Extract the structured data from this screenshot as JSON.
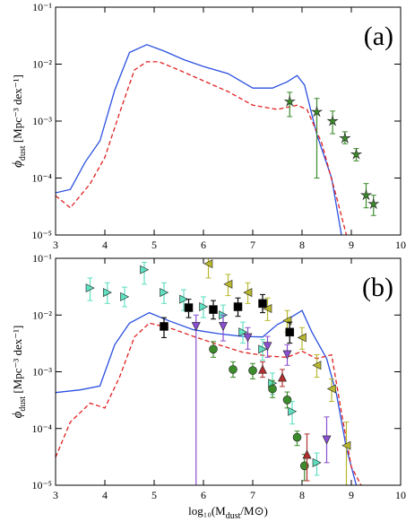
{
  "chart_data": [
    {
      "type": "line",
      "label": "(a)",
      "y_label": {
        "main": "ϕ",
        "sub": "dust",
        "unit": " [Mpc⁻³ dex⁻¹]"
      },
      "xlim": [
        3,
        10
      ],
      "xticks": [
        3,
        4,
        5,
        6,
        7,
        8,
        9,
        10
      ],
      "ylim": [
        1e-05,
        0.1
      ],
      "log_y": true,
      "yticks": [
        {
          "value": 1e-05,
          "label": "10⁻⁵"
        },
        {
          "value": 0.0001,
          "label": "10⁻⁴"
        },
        {
          "value": 0.001,
          "label": "10⁻³"
        },
        {
          "value": 0.01,
          "label": "10⁻²"
        },
        {
          "value": 0.1,
          "label": "10⁻¹"
        }
      ],
      "series": [
        {
          "color": "#2b50e0",
          "style": "solid",
          "x": [
            3,
            3.3,
            3.6,
            3.9,
            4.2,
            4.5,
            4.85,
            5.2,
            5.6,
            6.0,
            6.5,
            7.0,
            7.4,
            7.7,
            7.9,
            8.05,
            8.3,
            8.6,
            8.8,
            8.85
          ],
          "values": [
            5.5e-05,
            6.3e-05,
            0.00019,
            0.00045,
            0.0035,
            0.016,
            0.022,
            0.017,
            0.012,
            0.0091,
            0.0068,
            0.0038,
            0.0038,
            0.0049,
            0.0063,
            0.0043,
            0.00058,
            0.0001,
            1e-05,
            5e-06
          ]
        },
        {
          "color": "#e02020",
          "style": "dashed",
          "x": [
            3,
            3.3,
            3.7,
            4.0,
            4.3,
            4.6,
            4.85,
            5.1,
            5.5,
            6.0,
            6.5,
            7.0,
            7.5,
            7.9,
            8.1,
            8.4,
            8.7,
            8.9,
            9.0
          ],
          "values": [
            4.9e-05,
            3e-05,
            7.9e-05,
            0.00023,
            0.0014,
            0.0079,
            0.011,
            0.011,
            0.0079,
            0.0051,
            0.0033,
            0.0019,
            0.0016,
            0.0019,
            0.0016,
            0.00041,
            4.6e-05,
            1e-05,
            5e-06
          ]
        },
        {
          "color": "#3c8c2c",
          "style": "marker",
          "marker": "star",
          "x": [
            7.75,
            8.3,
            8.62,
            8.87,
            9.1,
            9.3,
            9.45
          ],
          "values": [
            0.0022,
            0.00145,
            0.001,
            0.0005,
            0.00026,
            5e-05,
            3.5e-05
          ],
          "yerr_low": [
            0.0012,
            0.0001,
            0.0006,
            0.0004,
            0.0002,
            3e-05,
            2.2e-05
          ],
          "yerr_high": [
            0.0032,
            0.0025,
            0.0015,
            0.00065,
            0.00033,
            8e-05,
            5e-05
          ]
        }
      ]
    },
    {
      "type": "line",
      "label": "(b)",
      "y_label": {
        "main": "ϕ",
        "sub": "dust",
        "unit": " [Mpc⁻³ dex⁻¹]"
      },
      "x_label": {
        "pre": "log₁₀(M",
        "sub": "dust",
        "post": "/M⊙)"
      },
      "xlim": [
        3,
        10
      ],
      "xticks": [
        3,
        4,
        5,
        6,
        7,
        8,
        9,
        10
      ],
      "ylim": [
        1e-05,
        0.1
      ],
      "log_y": true,
      "yticks": [
        {
          "value": 1e-05,
          "label": "10⁻⁵"
        },
        {
          "value": 0.0001,
          "label": "10⁻⁴"
        },
        {
          "value": 0.001,
          "label": "10⁻³"
        },
        {
          "value": 0.01,
          "label": "10⁻²"
        },
        {
          "value": 0.1,
          "label": "10⁻¹"
        }
      ],
      "series": [
        {
          "color": "#2b50e0",
          "style": "solid",
          "x": [
            3,
            3.5,
            3.9,
            4.2,
            4.5,
            4.9,
            5.3,
            5.8,
            6.3,
            6.8,
            7.2,
            7.5,
            7.7,
            8.0,
            8.2,
            8.5,
            8.7,
            8.9,
            9.1
          ],
          "values": [
            0.00043,
            0.00048,
            0.00056,
            0.003,
            0.0072,
            0.011,
            0.0079,
            0.0055,
            0.0047,
            0.0042,
            0.0041,
            0.0068,
            0.0083,
            0.012,
            0.005,
            0.0017,
            0.0004,
            4.5e-05,
            1e-05
          ]
        },
        {
          "color": "#e02020",
          "style": "dashed",
          "x": [
            3,
            3.3,
            3.7,
            4.0,
            4.3,
            4.6,
            4.9,
            5.3,
            5.8,
            6.3,
            6.8,
            7.3,
            7.7,
            8.0,
            8.3,
            8.6,
            8.8,
            9.0,
            9.2
          ],
          "values": [
            3.1e-05,
            0.00013,
            0.00028,
            0.00023,
            0.00081,
            0.0041,
            0.0072,
            0.006,
            0.0042,
            0.003,
            0.0022,
            0.0019,
            0.0018,
            0.0023,
            0.0017,
            0.002,
            0.00019,
            2.1e-05,
            1e-05
          ]
        },
        {
          "color": "#5fe0c0",
          "style": "marker",
          "marker": "tri-right",
          "x": [
            3.7,
            4.05,
            4.4,
            4.8,
            5.2,
            5.6,
            6.0,
            6.4,
            6.8,
            7.2,
            7.4,
            7.8,
            8.3
          ],
          "values": [
            0.03,
            0.025,
            0.021,
            0.063,
            0.025,
            0.019,
            0.014,
            0.01,
            0.005,
            0.0025,
            0.00063,
            0.0002,
            2.5e-05
          ],
          "yerr_low": [
            0.018,
            0.016,
            0.014,
            0.035,
            0.016,
            0.012,
            0.009,
            0.0065,
            0.0032,
            0.0016,
            0.0004,
            0.00012,
            1.5e-05
          ],
          "yerr_high": [
            0.045,
            0.037,
            0.031,
            0.085,
            0.037,
            0.028,
            0.021,
            0.015,
            0.0075,
            0.0037,
            0.00095,
            0.0003,
            3.7e-05
          ]
        },
        {
          "color": "#b8b830",
          "style": "marker",
          "marker": "tri-left",
          "x": [
            6.1,
            6.5,
            6.9,
            7.3,
            7.7,
            8.0,
            8.3,
            8.6,
            8.9
          ],
          "values": [
            0.08,
            0.035,
            0.025,
            0.013,
            0.008,
            0.004,
            0.0013,
            0.0005,
            5e-05
          ],
          "yerr_low": [
            0.045,
            0.022,
            0.016,
            0.008,
            0.005,
            0.0025,
            0.0008,
            0.0003,
            1e-05
          ],
          "yerr_high": [
            0.1,
            0.052,
            0.037,
            0.02,
            0.012,
            0.006,
            0.002,
            0.00075,
            0.00013
          ]
        },
        {
          "color": "#000000",
          "style": "marker",
          "marker": "square",
          "x": [
            5.2,
            5.7,
            6.2,
            6.7,
            7.2,
            7.75
          ],
          "values": [
            0.0063,
            0.0135,
            0.0125,
            0.014,
            0.016,
            0.005
          ],
          "yerr_low": [
            0.004,
            0.009,
            0.0085,
            0.0095,
            0.011,
            0.0032
          ],
          "yerr_high": [
            0.009,
            0.019,
            0.018,
            0.02,
            0.023,
            0.0075
          ]
        },
        {
          "color": "#8a4fd0",
          "style": "marker",
          "marker": "tri-down",
          "x": [
            5.85,
            6.4,
            6.9,
            7.3,
            7.7,
            8.5
          ],
          "values": [
            0.0063,
            0.0063,
            0.004,
            0.0028,
            0.002,
            6.3e-05
          ],
          "yerr_low": [
            1e-05,
            0.0035,
            0.0025,
            0.0018,
            0.0013,
            2.5e-05
          ],
          "yerr_high": [
            0.01,
            0.01,
            0.006,
            0.0042,
            0.003,
            0.00016
          ]
        },
        {
          "color": "#3c8c2c",
          "style": "marker",
          "marker": "circle",
          "x": [
            6.2,
            6.6,
            7.0,
            7.4,
            7.7,
            7.9,
            8.05
          ],
          "values": [
            0.0025,
            0.0011,
            0.00105,
            0.0005,
            0.00032,
            7e-05,
            2.2e-05
          ],
          "yerr_low": [
            0.0018,
            0.0008,
            0.00075,
            0.00035,
            0.00023,
            5e-05,
            1.2e-05
          ],
          "yerr_high": [
            0.0034,
            0.0015,
            0.0014,
            0.0007,
            0.00044,
            9e-05,
            3.5e-05
          ]
        },
        {
          "color": "#b03030",
          "style": "marker",
          "marker": "tri-up",
          "x": [
            7.2,
            7.6,
            8.1
          ],
          "values": [
            0.0011,
            0.0008,
            3.5e-05
          ],
          "yerr_low": [
            0.0008,
            0.00055,
            1.2e-05
          ],
          "yerr_high": [
            0.0015,
            0.0011,
            8e-05
          ]
        }
      ]
    }
  ]
}
